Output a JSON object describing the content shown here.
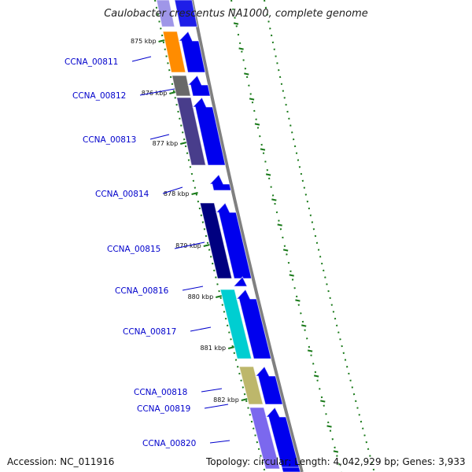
{
  "title": "Caulobacter crescentus NA1000, complete genome",
  "accession": "Accession: NC_011916",
  "summary": "Topology: circular; Length: 4,042,929 bp; Genes: 3,933",
  "colors": {
    "backbone": "#808080",
    "cds_forward": "#0000ee",
    "label": "#0000cc",
    "tick": "#1a7a1a"
  },
  "kbp_ticks": [
    "875 kbp",
    "876 kbp",
    "877 kbp",
    "878 kbp",
    "879 kbp",
    "880 kbp",
    "881 kbp",
    "882 kbp"
  ],
  "genes": [
    {
      "label": "CCNA_00811",
      "cog_color": "#ff8c00"
    },
    {
      "label": "CCNA_00812",
      "cog_color": "#696969"
    },
    {
      "label": "CCNA_00813",
      "cog_color": "#483d8b"
    },
    {
      "label": "CCNA_00814",
      "cog_color": ""
    },
    {
      "label": "CCNA_00815",
      "cog_color": "#000080"
    },
    {
      "label": "CCNA_00816",
      "cog_color": ""
    },
    {
      "label": "CCNA_00817",
      "cog_color": "#00ced1"
    },
    {
      "label": "CCNA_00818",
      "cog_color": "#bdb76b"
    },
    {
      "label": "CCNA_00819",
      "cog_color": ""
    },
    {
      "label": "CCNA_00820",
      "cog_color": "#7b68ee"
    }
  ]
}
